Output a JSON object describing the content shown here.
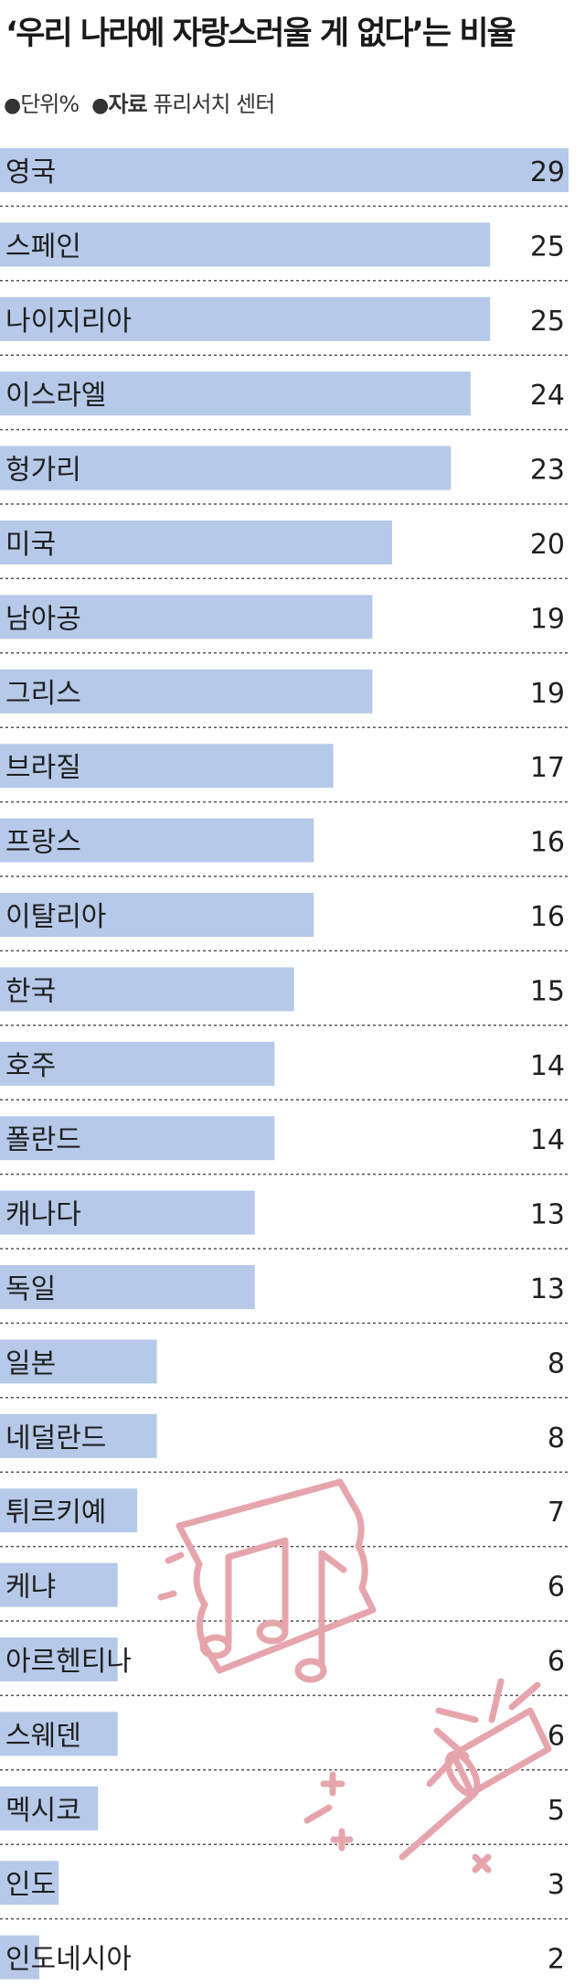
{
  "title": "‘우리 나라에 자랑스러울 게 없다’는 비율",
  "meta": {
    "unit_bullet": "●",
    "unit": "단위%",
    "source_bullet": "●",
    "source_label": "자료",
    "source": "퓨리서치 센터"
  },
  "colors": {
    "bar": "#b6c9e8",
    "divider": "#555555",
    "illustration": "#e6a5ad"
  },
  "illustration": {
    "icons": [
      "music-ticket-icon",
      "party-popper-icon"
    ]
  },
  "chart_data": {
    "type": "bar",
    "orientation": "horizontal",
    "title": "‘우리 나라에 자랑스러울 게 없다’는 비율",
    "unit": "단위%",
    "source": "퓨리서치 센터",
    "categories": [
      "영국",
      "스페인",
      "나이지리아",
      "이스라엘",
      "헝가리",
      "미국",
      "남아공",
      "그리스",
      "브라질",
      "프랑스",
      "이탈리아",
      "한국",
      "호주",
      "폴란드",
      "캐나다",
      "독일",
      "일본",
      "네덜란드",
      "튀르키예",
      "케냐",
      "아르헨티나",
      "스웨덴",
      "멕시코",
      "인도",
      "인도네시아"
    ],
    "values": [
      29,
      25,
      25,
      24,
      23,
      20,
      19,
      19,
      17,
      16,
      16,
      15,
      14,
      14,
      13,
      13,
      8,
      8,
      7,
      6,
      6,
      6,
      5,
      3,
      2
    ],
    "xlim": [
      0,
      29
    ],
    "grid": false,
    "legend": "none"
  }
}
